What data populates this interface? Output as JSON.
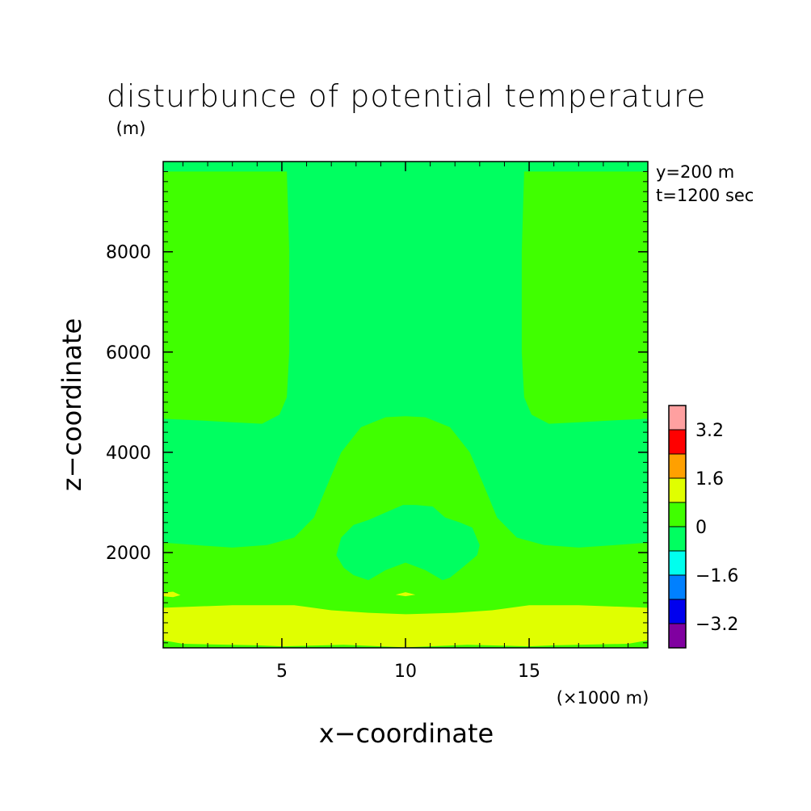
{
  "chart_data": {
    "type": "heatmap",
    "title": "disturbunce of potential temperature",
    "z_unit": "(m)",
    "x_unit": "(×1000 m)",
    "xlabel": "x−coordinate",
    "ylabel": "z−coordinate",
    "xlim": [
      0.2,
      19.8
    ],
    "ylim": [
      100,
      9800
    ],
    "x_ticks": [
      {
        "value": 5,
        "label": "5"
      },
      {
        "value": 10,
        "label": "10"
      },
      {
        "value": 15,
        "label": "15"
      }
    ],
    "y_ticks": [
      {
        "value": 2000,
        "label": "2000"
      },
      {
        "value": 4000,
        "label": "4000"
      },
      {
        "value": 6000,
        "label": "6000"
      },
      {
        "value": 8000,
        "label": "8000"
      }
    ],
    "annotations": [
      "y=200 m",
      "t=1200 sec"
    ],
    "colorbar": {
      "levels": [
        -4.0,
        -3.2,
        -2.4,
        -1.6,
        -0.8,
        0,
        0.8,
        1.6,
        2.4,
        3.2,
        4.0
      ],
      "colors": [
        "#8000a0",
        "#0000ee",
        "#0080ff",
        "#00ffee",
        "#00ff60",
        "#40ff00",
        "#e0ff00",
        "#ffa000",
        "#ff0000",
        "#ffa0a0"
      ],
      "labels": [
        {
          "value": -3.2,
          "label": "−3.2"
        },
        {
          "value": -1.6,
          "label": "−1.6"
        },
        {
          "value": 0,
          "label": "0"
        },
        {
          "value": 1.6,
          "label": "1.6"
        },
        {
          "value": 3.2,
          "label": "3.2"
        }
      ]
    },
    "regions": [
      {
        "name": "background",
        "band": "-0.8 to 0",
        "color": "#00ff60",
        "polygon": [
          [
            0.2,
            100
          ],
          [
            19.8,
            100
          ],
          [
            19.8,
            9800
          ],
          [
            0.2,
            9800
          ]
        ]
      },
      {
        "name": "left-upper-warm",
        "band": "0 to 0.8",
        "color": "#40ff00",
        "polygon": [
          [
            0.2,
            9600
          ],
          [
            5.2,
            9600
          ],
          [
            5.3,
            8000
          ],
          [
            5.3,
            6000
          ],
          [
            5.2,
            5100
          ],
          [
            4.9,
            4750
          ],
          [
            4.2,
            4570
          ],
          [
            3.0,
            4600
          ],
          [
            1.5,
            4640
          ],
          [
            0.2,
            4670
          ]
        ]
      },
      {
        "name": "right-upper-warm",
        "band": "0 to 0.8",
        "color": "#40ff00",
        "polygon": [
          [
            19.8,
            9600
          ],
          [
            14.8,
            9600
          ],
          [
            14.7,
            8000
          ],
          [
            14.7,
            6000
          ],
          [
            14.8,
            5100
          ],
          [
            15.1,
            4750
          ],
          [
            15.8,
            4570
          ],
          [
            17.0,
            4600
          ],
          [
            18.5,
            4640
          ],
          [
            19.8,
            4670
          ]
        ]
      },
      {
        "name": "lower-warm",
        "band": "0 to 0.8",
        "color": "#40ff00",
        "polygon": [
          [
            0.2,
            100
          ],
          [
            19.8,
            100
          ],
          [
            19.8,
            2200
          ],
          [
            18.5,
            2150
          ],
          [
            17.0,
            2100
          ],
          [
            15.6,
            2150
          ],
          [
            14.5,
            2300
          ],
          [
            13.7,
            2700
          ],
          [
            13.2,
            3300
          ],
          [
            12.6,
            4000
          ],
          [
            11.8,
            4500
          ],
          [
            10.8,
            4700
          ],
          [
            10.0,
            4720
          ],
          [
            9.2,
            4700
          ],
          [
            8.2,
            4500
          ],
          [
            7.4,
            4000
          ],
          [
            6.8,
            3300
          ],
          [
            6.3,
            2700
          ],
          [
            5.5,
            2300
          ],
          [
            4.4,
            2150
          ],
          [
            3.0,
            2100
          ],
          [
            1.5,
            2150
          ],
          [
            0.2,
            2200
          ]
        ]
      },
      {
        "name": "core-cool",
        "band": "-0.8 to 0",
        "color": "#00ff60",
        "polygon": [
          [
            8.5,
            1450
          ],
          [
            9.2,
            1650
          ],
          [
            10.0,
            1800
          ],
          [
            10.8,
            1650
          ],
          [
            11.5,
            1450
          ],
          [
            11.8,
            1500
          ],
          [
            12.3,
            1700
          ],
          [
            12.9,
            1950
          ],
          [
            13.0,
            2150
          ],
          [
            12.7,
            2500
          ],
          [
            12.2,
            2600
          ],
          [
            11.6,
            2700
          ],
          [
            11.1,
            2920
          ],
          [
            10.4,
            2950
          ],
          [
            9.9,
            2950
          ],
          [
            9.2,
            2800
          ],
          [
            8.5,
            2650
          ],
          [
            7.9,
            2550
          ],
          [
            7.4,
            2300
          ],
          [
            7.2,
            1950
          ],
          [
            7.5,
            1700
          ],
          [
            7.9,
            1550
          ]
        ]
      },
      {
        "name": "surface-band",
        "band": "0.8 to 1.6",
        "color": "#e0ff00",
        "polygon": [
          [
            0.2,
            250
          ],
          [
            1.0,
            180
          ],
          [
            4.0,
            150
          ],
          [
            5.0,
            130
          ],
          [
            7.5,
            160
          ],
          [
            10.0,
            110
          ],
          [
            12.5,
            160
          ],
          [
            15.0,
            130
          ],
          [
            16.0,
            150
          ],
          [
            19.0,
            180
          ],
          [
            19.8,
            250
          ],
          [
            19.8,
            900
          ],
          [
            17.0,
            950
          ],
          [
            15.0,
            950
          ],
          [
            13.5,
            850
          ],
          [
            12.0,
            800
          ],
          [
            10.0,
            770
          ],
          [
            8.5,
            800
          ],
          [
            7.0,
            850
          ],
          [
            5.5,
            950
          ],
          [
            3.0,
            950
          ],
          [
            0.2,
            900
          ]
        ]
      },
      {
        "name": "thin-warm-streak-left",
        "band": "0.8 to 1.6",
        "color": "#e0ff00",
        "polygon": [
          [
            0.2,
            1200
          ],
          [
            0.6,
            1220
          ],
          [
            0.9,
            1150
          ],
          [
            0.6,
            1110
          ],
          [
            0.2,
            1130
          ]
        ]
      },
      {
        "name": "thin-warm-streak-center",
        "band": "0.8 to 1.6",
        "color": "#e0ff00",
        "polygon": [
          [
            9.6,
            1160
          ],
          [
            10.0,
            1210
          ],
          [
            10.4,
            1160
          ],
          [
            10.0,
            1130
          ]
        ]
      }
    ]
  }
}
